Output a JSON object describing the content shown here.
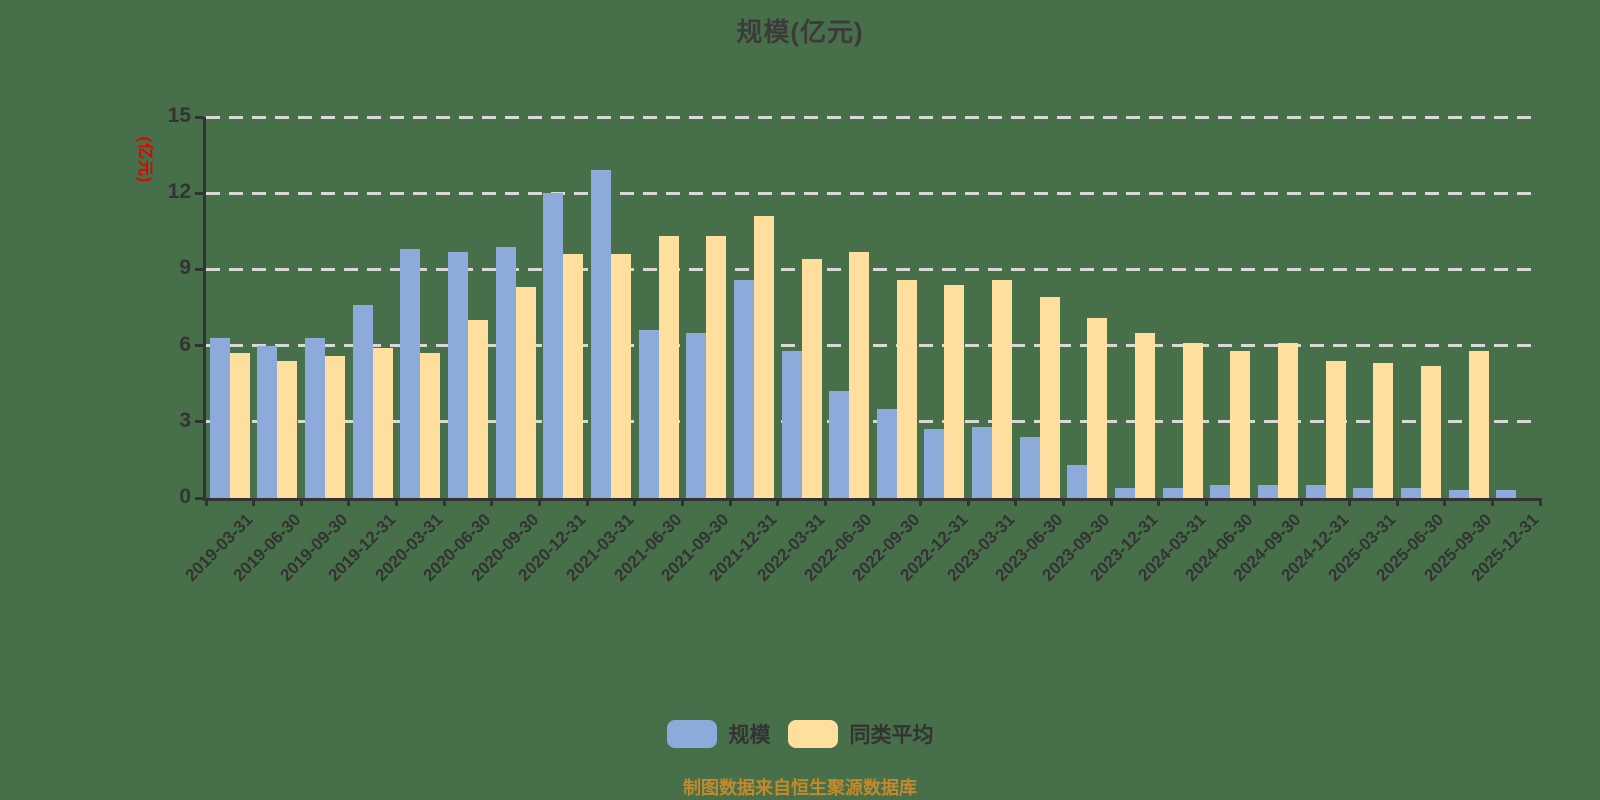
{
  "title": "规模(亿元)",
  "y_axis": {
    "name": "(亿元)",
    "ticks": [
      0,
      3,
      6,
      9,
      12,
      15
    ]
  },
  "footer": "制图数据来自恒生聚源数据库",
  "colors": {
    "background": "#47704a",
    "series_scale": "#8cabdb",
    "series_average": "#fedf9e",
    "grid": "#d9d9d9",
    "axis": "#333333",
    "axis_name": "#e60000",
    "title": "#3b3b3b",
    "footer": "#c3892b"
  },
  "chart_data": {
    "type": "bar",
    "title": "规模(亿元)",
    "xlabel": "",
    "ylabel": "(亿元)",
    "ylim": [
      0,
      15
    ],
    "yticks": [
      0,
      3,
      6,
      9,
      12,
      15
    ],
    "grid": "dashed-horizontal",
    "legend_position": "bottom",
    "categories": [
      "2019-03-31",
      "2019-06-30",
      "2019-09-30",
      "2019-12-31",
      "2020-03-31",
      "2020-06-30",
      "2020-09-30",
      "2020-12-31",
      "2021-03-31",
      "2021-06-30",
      "2021-09-30",
      "2021-12-31",
      "2022-03-31",
      "2022-06-30",
      "2022-09-30",
      "2022-12-31",
      "2023-03-31",
      "2023-06-30",
      "2023-09-30",
      "2023-12-31",
      "2024-03-31",
      "2024-06-30",
      "2024-09-30",
      "2024-12-31",
      "2025-03-31",
      "2025-06-30",
      "2025-09-30",
      "2025-12-31"
    ],
    "series": [
      {
        "name": "规模",
        "color": "#8cabdb",
        "values": [
          6.3,
          6.0,
          6.3,
          7.6,
          9.8,
          9.7,
          9.9,
          12.0,
          12.9,
          6.6,
          6.5,
          8.6,
          5.8,
          4.2,
          3.5,
          2.7,
          2.8,
          2.4,
          1.3,
          0.4,
          0.4,
          0.5,
          0.5,
          0.5,
          0.4,
          0.4,
          0.3,
          0.3
        ]
      },
      {
        "name": "同类平均",
        "color": "#fedf9e",
        "values": [
          5.7,
          5.4,
          5.6,
          5.9,
          5.7,
          7.0,
          8.3,
          9.6,
          9.6,
          10.3,
          10.3,
          11.1,
          9.4,
          9.7,
          8.6,
          8.4,
          8.6,
          7.9,
          7.1,
          6.5,
          6.1,
          5.8,
          6.1,
          5.4,
          5.3,
          5.2,
          5.8,
          0
        ]
      }
    ]
  }
}
